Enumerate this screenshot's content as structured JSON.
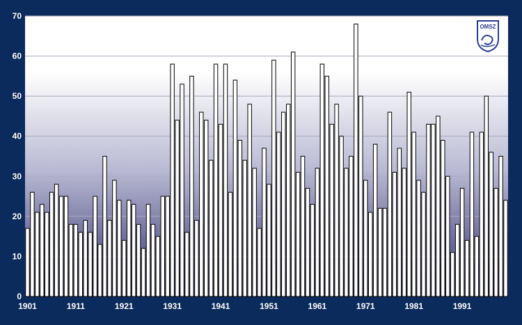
{
  "chart_data": {
    "type": "bar",
    "title": "",
    "xlabel": "",
    "ylabel": "",
    "x": [
      1901,
      1902,
      1903,
      1904,
      1905,
      1906,
      1907,
      1908,
      1909,
      1910,
      1911,
      1912,
      1913,
      1914,
      1915,
      1916,
      1917,
      1918,
      1919,
      1920,
      1921,
      1922,
      1923,
      1924,
      1925,
      1926,
      1927,
      1928,
      1929,
      1930,
      1931,
      1932,
      1933,
      1934,
      1935,
      1936,
      1937,
      1938,
      1939,
      1940,
      1941,
      1942,
      1943,
      1944,
      1945,
      1946,
      1947,
      1948,
      1949,
      1950,
      1951,
      1952,
      1953,
      1954,
      1955,
      1956,
      1957,
      1958,
      1959,
      1960,
      1961,
      1962,
      1963,
      1964,
      1965,
      1966,
      1967,
      1968,
      1969,
      1970,
      1971,
      1972,
      1973,
      1974,
      1975,
      1976,
      1977,
      1978,
      1979,
      1980,
      1981,
      1982,
      1983,
      1984,
      1985,
      1986,
      1987,
      1988,
      1989,
      1990,
      1991,
      1992,
      1993,
      1994,
      1995,
      1996,
      1997,
      1998,
      1999,
      2000
    ],
    "values": [
      17,
      26,
      21,
      23,
      21,
      26,
      28,
      25,
      25,
      18,
      18,
      16,
      19,
      16,
      25,
      13,
      35,
      19,
      29,
      24,
      14,
      24,
      23,
      18,
      12,
      23,
      18,
      15,
      25,
      25,
      58,
      44,
      53,
      16,
      55,
      19,
      46,
      44,
      34,
      58,
      43,
      58,
      26,
      54,
      39,
      34,
      48,
      32,
      17,
      37,
      28,
      59,
      41,
      46,
      48,
      61,
      31,
      35,
      27,
      23,
      32,
      58,
      55,
      43,
      48,
      40,
      32,
      35,
      68,
      50,
      29,
      21,
      38,
      22,
      22,
      46,
      31,
      37,
      32,
      51,
      41,
      29,
      26,
      43,
      43,
      45,
      39,
      30,
      11,
      18,
      27,
      14,
      41,
      15,
      41,
      50,
      36,
      27,
      35,
      24
    ],
    "x_ticks": [
      "1901",
      "1911",
      "1921",
      "1931",
      "1941",
      "1951",
      "1961",
      "1971",
      "1981",
      "1991"
    ],
    "y_ticks": [
      "0",
      "10",
      "20",
      "30",
      "40",
      "50",
      "60",
      "70"
    ],
    "ylim": [
      0,
      70
    ],
    "grid": true,
    "legend": "none",
    "colors": {
      "frame": "#0b2b5c",
      "bar_fill": "#ffffff",
      "bar_stroke": "#000000",
      "grid": "#a9a9bd"
    }
  },
  "logo": {
    "text": "OMSZ"
  }
}
